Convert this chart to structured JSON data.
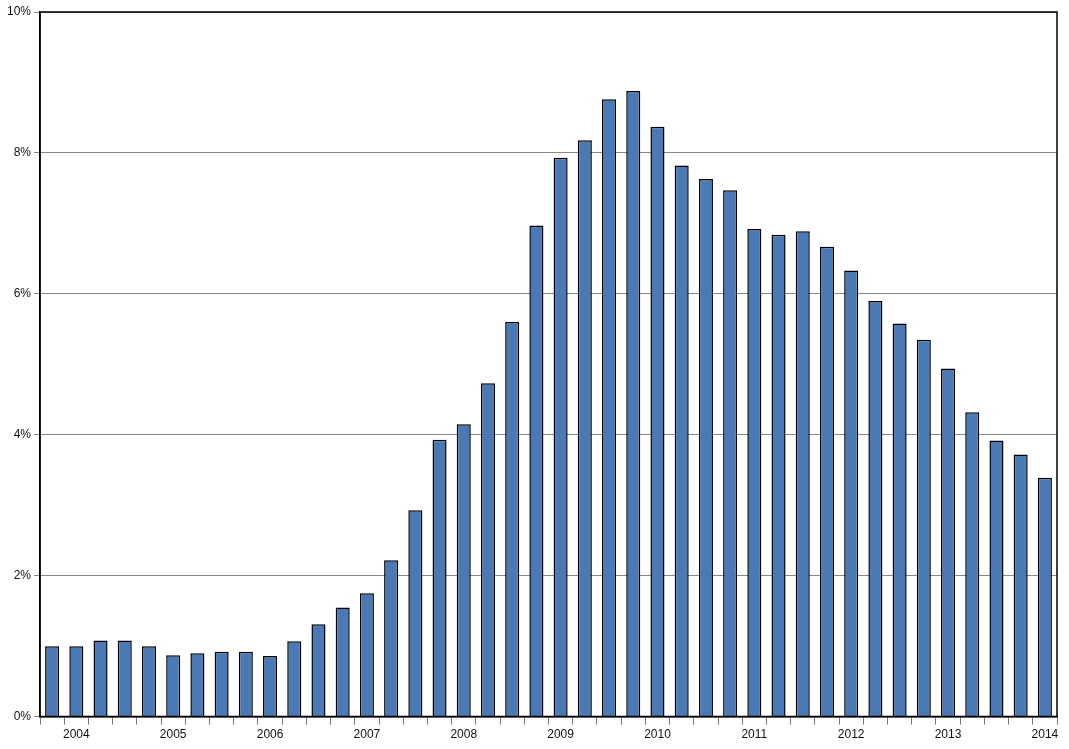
{
  "chart_data": {
    "type": "bar",
    "categories": [
      null,
      "2004",
      null,
      null,
      null,
      "2005",
      null,
      null,
      null,
      "2006",
      null,
      null,
      null,
      "2007",
      null,
      null,
      null,
      "2008",
      null,
      null,
      null,
      "2009",
      null,
      null,
      null,
      "2010",
      null,
      null,
      null,
      "2011",
      null,
      null,
      null,
      "2012",
      null,
      null,
      null,
      "2013",
      null,
      null,
      null,
      "2014"
    ],
    "values": [
      1.0,
      1.0,
      1.08,
      1.08,
      1.0,
      0.87,
      0.9,
      0.92,
      0.92,
      0.86,
      1.07,
      1.31,
      1.55,
      1.75,
      2.22,
      2.93,
      3.93,
      4.15,
      4.73,
      5.6,
      6.97,
      7.93,
      8.18,
      8.76,
      8.88,
      8.37,
      7.82,
      7.63,
      7.47,
      6.92,
      6.84,
      6.89,
      6.67,
      6.33,
      5.9,
      5.58,
      5.35,
      4.94,
      4.32,
      3.92,
      3.72,
      3.39
    ],
    "color": "#4a7ab5",
    "ylim": [
      0,
      10
    ],
    "yticks": [
      {
        "value": 0,
        "label": "0%"
      },
      {
        "value": 2,
        "label": "2%"
      },
      {
        "value": 4,
        "label": "4%"
      },
      {
        "value": 6,
        "label": "6%"
      },
      {
        "value": 8,
        "label": "8%"
      },
      {
        "value": 10,
        "label": "10%"
      }
    ],
    "grid": "y",
    "legend": false
  }
}
